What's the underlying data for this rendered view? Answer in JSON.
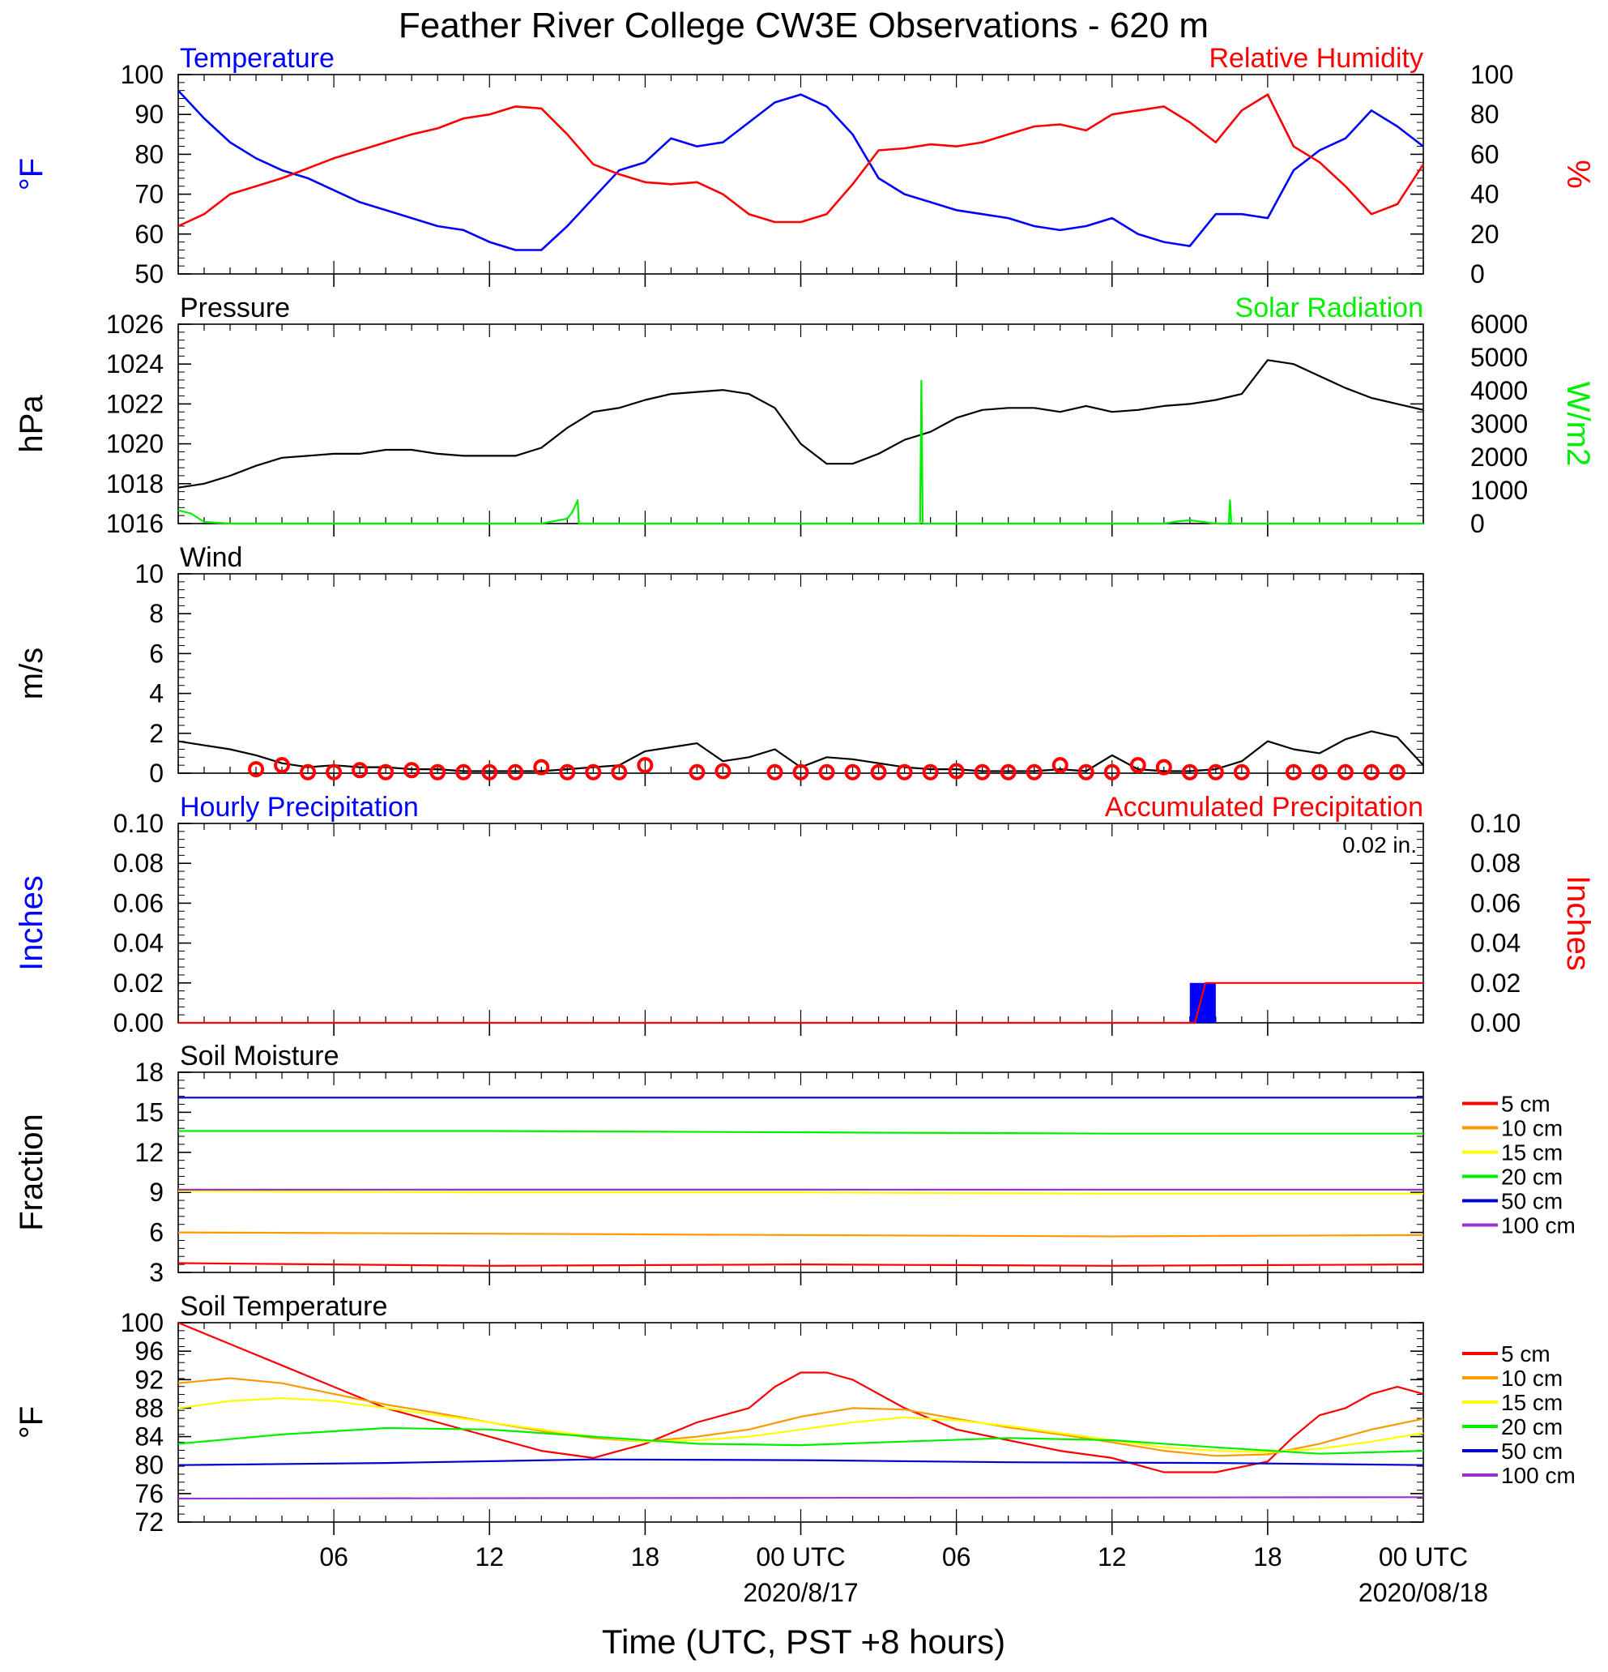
{
  "title": "Feather River College CW3E Observations - 620 m",
  "xlabel": "Time (UTC, PST +8 hours)",
  "x_ticks": [
    {
      "hour": 6,
      "label": "06",
      "sub": ""
    },
    {
      "hour": 12,
      "label": "12",
      "sub": ""
    },
    {
      "hour": 18,
      "label": "18",
      "sub": ""
    },
    {
      "hour": 24,
      "label": "00 UTC",
      "sub": "2020/8/17"
    },
    {
      "hour": 30,
      "label": "06",
      "sub": ""
    },
    {
      "hour": 36,
      "label": "12",
      "sub": ""
    },
    {
      "hour": 42,
      "label": "18",
      "sub": ""
    },
    {
      "hour": 48,
      "label": "00 UTC",
      "sub": "2020/08/18"
    }
  ],
  "colors": {
    "temperature": "#0000ff",
    "humidity": "#ff0000",
    "pressure": "#000000",
    "solar": "#00ee00",
    "wind": "#000000",
    "barbs": "#ff0000",
    "precip_bar": "#0000ff",
    "precip_accum": "#ff0000",
    "depth_5": "#ff0000",
    "depth_10": "#ff9900",
    "depth_15": "#ffff00",
    "depth_20": "#00ee00",
    "depth_50": "#0000cc",
    "depth_100": "#9933cc"
  },
  "chart_data": [
    {
      "type": "line",
      "title_left": "Temperature",
      "title_right": "Relative Humidity",
      "ylabel_left": "°F",
      "ylabel_right": "%",
      "ylim_left": [
        50,
        100
      ],
      "ylim_right": [
        0,
        100
      ],
      "yticks_left": [
        50,
        60,
        70,
        80,
        90,
        100
      ],
      "yticks_right": [
        0,
        20,
        40,
        60,
        80,
        100
      ],
      "series": [
        {
          "name": "Temperature",
          "axis": "left",
          "x": [
            0,
            1,
            2,
            3,
            4,
            5,
            6,
            7,
            8,
            9,
            10,
            11,
            12,
            13,
            14,
            15,
            16,
            17,
            18,
            19,
            20,
            21,
            22,
            23,
            24,
            25,
            26,
            27,
            28,
            29,
            30,
            31,
            32,
            33,
            34,
            35,
            36,
            37,
            38,
            39,
            40,
            41,
            42,
            43,
            44,
            45,
            46,
            47,
            48
          ],
          "y": [
            96,
            89,
            83,
            79,
            76,
            74,
            71,
            68,
            66,
            64,
            62,
            61,
            58,
            56,
            56,
            62,
            69,
            76,
            78,
            84,
            82,
            83,
            88,
            93,
            95,
            92,
            85,
            74,
            70,
            68,
            66,
            65,
            64,
            62,
            61,
            62,
            64,
            60,
            58,
            57,
            65,
            65,
            64,
            76,
            81,
            84,
            91,
            87,
            82
          ]
        },
        {
          "name": "Relative Humidity",
          "axis": "right",
          "x": [
            0,
            1,
            2,
            3,
            4,
            5,
            6,
            7,
            8,
            9,
            10,
            11,
            12,
            13,
            14,
            15,
            16,
            17,
            18,
            19,
            20,
            21,
            22,
            23,
            24,
            25,
            26,
            27,
            28,
            29,
            30,
            31,
            32,
            33,
            34,
            35,
            36,
            37,
            38,
            39,
            40,
            41,
            42,
            43,
            44,
            45,
            46,
            47,
            48
          ],
          "y": [
            24,
            30,
            40,
            44,
            48,
            53,
            58,
            62,
            66,
            70,
            73,
            78,
            80,
            84,
            83,
            70,
            55,
            50,
            46,
            45,
            46,
            40,
            30,
            26,
            26,
            30,
            45,
            62,
            63,
            65,
            64,
            66,
            70,
            74,
            75,
            72,
            80,
            82,
            84,
            76,
            66,
            82,
            90,
            64,
            56,
            44,
            30,
            35,
            55
          ]
        }
      ]
    },
    {
      "type": "line",
      "title_left": "Pressure",
      "title_right": "Solar Radiation",
      "ylabel_left": "hPa",
      "ylabel_right": "W/m2",
      "ylim_left": [
        1016,
        1026
      ],
      "ylim_right": [
        0,
        6000
      ],
      "yticks_left": [
        1016,
        1018,
        1020,
        1022,
        1024,
        1026
      ],
      "yticks_right": [
        0,
        1000,
        2000,
        3000,
        4000,
        5000,
        6000
      ],
      "series": [
        {
          "name": "Pressure",
          "axis": "left",
          "x": [
            0,
            1,
            2,
            3,
            4,
            5,
            6,
            7,
            8,
            9,
            10,
            11,
            12,
            13,
            14,
            15,
            16,
            17,
            18,
            19,
            20,
            21,
            22,
            23,
            24,
            25,
            26,
            27,
            28,
            29,
            30,
            31,
            32,
            33,
            34,
            35,
            36,
            37,
            38,
            39,
            40,
            41,
            42,
            43,
            44,
            45,
            46,
            47,
            48
          ],
          "y": [
            1017.8,
            1018.0,
            1018.4,
            1018.9,
            1019.3,
            1019.4,
            1019.5,
            1019.5,
            1019.7,
            1019.7,
            1019.5,
            1019.4,
            1019.4,
            1019.4,
            1019.8,
            1020.8,
            1021.6,
            1021.8,
            1022.2,
            1022.5,
            1022.6,
            1022.7,
            1022.5,
            1021.8,
            1020.0,
            1019.0,
            1019.0,
            1019.5,
            1020.2,
            1020.6,
            1021.3,
            1021.7,
            1021.8,
            1021.8,
            1021.6,
            1021.9,
            1021.6,
            1021.7,
            1021.9,
            1022.0,
            1022.2,
            1022.5,
            1024.2,
            1024.0,
            1023.4,
            1022.8,
            1022.3,
            1022.0,
            1021.7
          ]
        },
        {
          "name": "Solar Radiation",
          "axis": "right",
          "x": [
            0,
            0.5,
            1,
            2,
            14,
            15,
            15.2,
            15.4,
            15.45,
            16,
            28.6,
            28.65,
            28.7,
            29,
            38,
            38.5,
            39,
            40,
            40.5,
            40.55,
            40.6,
            41,
            48
          ],
          "y": [
            400,
            300,
            50,
            0,
            0,
            150,
            350,
            700,
            0,
            0,
            0,
            4300,
            0,
            0,
            0,
            60,
            100,
            0,
            0,
            700,
            0,
            0,
            0
          ]
        }
      ]
    },
    {
      "type": "line",
      "title_left": "Wind",
      "ylabel_left": "m/s",
      "ylim_left": [
        0,
        10
      ],
      "yticks_left": [
        0,
        2,
        4,
        6,
        8,
        10
      ],
      "series": [
        {
          "name": "Wind Speed",
          "axis": "left",
          "x": [
            0,
            1,
            2,
            3,
            4,
            5,
            6,
            7,
            8,
            9,
            10,
            11,
            12,
            13,
            14,
            15,
            16,
            17,
            18,
            19,
            20,
            21,
            22,
            23,
            24,
            25,
            26,
            27,
            28,
            29,
            30,
            31,
            32,
            33,
            34,
            35,
            36,
            37,
            38,
            39,
            40,
            41,
            42,
            43,
            44,
            45,
            46,
            47,
            48
          ],
          "y": [
            1.6,
            1.4,
            1.2,
            0.9,
            0.5,
            0.3,
            0.4,
            0.3,
            0.3,
            0.2,
            0.2,
            0.1,
            0.1,
            0.1,
            0.1,
            0.2,
            0.3,
            0.4,
            1.1,
            1.3,
            1.5,
            0.6,
            0.8,
            1.2,
            0.3,
            0.8,
            0.7,
            0.5,
            0.3,
            0.2,
            0.2,
            0.1,
            0.1,
            0.1,
            0.2,
            0.1,
            0.9,
            0.2,
            0.1,
            0.1,
            0.2,
            0.6,
            1.6,
            1.2,
            1.0,
            1.7,
            2.1,
            1.8,
            0.4
          ]
        },
        {
          "name": "Wind Barbs",
          "axis": "left",
          "marker": "circle",
          "x": [
            3,
            4,
            5,
            6,
            7,
            8,
            9,
            10,
            11,
            12,
            13,
            14,
            15,
            16,
            17,
            18,
            20,
            21,
            23,
            24,
            25,
            26,
            27,
            28,
            29,
            30,
            31,
            32,
            33,
            34,
            35,
            36,
            37,
            38,
            39,
            40,
            41,
            43,
            44,
            45,
            46,
            47
          ],
          "y": [
            0.2,
            0.4,
            0.05,
            0.05,
            0.15,
            0.05,
            0.15,
            0.05,
            0.05,
            0.05,
            0.05,
            0.3,
            0.05,
            0.05,
            0.05,
            0.4,
            0.05,
            0.1,
            0.05,
            0.05,
            0.05,
            0.05,
            0.05,
            0.05,
            0.05,
            0.1,
            0.05,
            0.05,
            0.05,
            0.4,
            0.05,
            0.05,
            0.4,
            0.3,
            0.05,
            0.05,
            0.05,
            0.05,
            0.05,
            0.05,
            0.05,
            0.05
          ]
        }
      ]
    },
    {
      "type": "bar",
      "title_left": "Hourly Precipitation",
      "title_right": "Accumulated Precipitation",
      "annotation": "0.02 in.",
      "ylabel_left": "Inches",
      "ylabel_right": "Inches",
      "ylim_left": [
        0,
        0.1
      ],
      "ylim_right": [
        0,
        0.1
      ],
      "yticks_left": [
        "0.00",
        "0.02",
        "0.04",
        "0.06",
        "0.08",
        "0.10"
      ],
      "yticks_right": [
        "0.00",
        "0.02",
        "0.04",
        "0.06",
        "0.08",
        "0.10"
      ],
      "series": [
        {
          "name": "Hourly Precipitation",
          "axis": "left",
          "x": [
            39.5
          ],
          "width_hours": 1,
          "y": [
            0.02
          ]
        },
        {
          "name": "Accumulated Precipitation",
          "axis": "right",
          "x": [
            0,
            39.2,
            39.6,
            48
          ],
          "y": [
            0,
            0,
            0.02,
            0.02
          ]
        }
      ]
    },
    {
      "type": "line",
      "title_left": "Soil Moisture",
      "ylabel_left": "Fraction",
      "ylim_left": [
        3,
        18
      ],
      "yticks_left": [
        3,
        6,
        9,
        12,
        15,
        18
      ],
      "legend": [
        "5 cm",
        "10 cm",
        "15 cm",
        "20 cm",
        "50 cm",
        "100 cm"
      ],
      "series": [
        {
          "name": "5 cm",
          "x": [
            0,
            12,
            24,
            36,
            48
          ],
          "y": [
            3.7,
            3.5,
            3.6,
            3.5,
            3.6
          ]
        },
        {
          "name": "10 cm",
          "x": [
            0,
            12,
            24,
            36,
            48
          ],
          "y": [
            6.0,
            5.9,
            5.8,
            5.7,
            5.8
          ]
        },
        {
          "name": "15 cm",
          "x": [
            0,
            12,
            24,
            36,
            48
          ],
          "y": [
            9.1,
            9.0,
            9.0,
            8.9,
            8.9
          ]
        },
        {
          "name": "20 cm",
          "x": [
            0,
            12,
            24,
            36,
            48
          ],
          "y": [
            13.6,
            13.6,
            13.5,
            13.4,
            13.4
          ]
        },
        {
          "name": "50 cm",
          "x": [
            0,
            12,
            24,
            36,
            48
          ],
          "y": [
            16.1,
            16.1,
            16.1,
            16.1,
            16.1
          ]
        },
        {
          "name": "100 cm",
          "x": [
            0,
            12,
            24,
            36,
            48
          ],
          "y": [
            9.2,
            9.2,
            9.2,
            9.2,
            9.2
          ]
        }
      ]
    },
    {
      "type": "line",
      "title_left": "Soil Temperature",
      "ylabel_left": "°F",
      "ylim_left": [
        72,
        100
      ],
      "yticks_left": [
        72,
        76,
        80,
        84,
        88,
        92,
        96,
        100
      ],
      "legend": [
        "5 cm",
        "10 cm",
        "15 cm",
        "20 cm",
        "50 cm",
        "100 cm"
      ],
      "series": [
        {
          "name": "5 cm",
          "x": [
            0,
            2,
            4,
            6,
            8,
            10,
            12,
            14,
            16,
            18,
            20,
            22,
            23,
            24,
            25,
            26,
            28,
            30,
            32,
            34,
            36,
            38,
            40,
            42,
            43,
            44,
            45,
            46,
            47,
            48
          ],
          "y": [
            100,
            97,
            94,
            91,
            88,
            86,
            84,
            82,
            81,
            83,
            86,
            88,
            91,
            93,
            93,
            92,
            88,
            85,
            83.5,
            82,
            81,
            79,
            79,
            80.5,
            84,
            87,
            88,
            90,
            91,
            90
          ]
        },
        {
          "name": "10 cm",
          "x": [
            0,
            2,
            4,
            6,
            8,
            10,
            12,
            14,
            16,
            18,
            20,
            22,
            24,
            26,
            28,
            30,
            32,
            34,
            36,
            38,
            40,
            42,
            44,
            46,
            48
          ],
          "y": [
            91.5,
            92.2,
            91.5,
            90,
            88.5,
            87.3,
            86,
            84.8,
            83.8,
            83.3,
            84,
            85,
            86.8,
            88,
            87.8,
            86.5,
            85.3,
            84.3,
            83.2,
            82,
            81.3,
            81.5,
            83,
            85,
            86.5
          ]
        },
        {
          "name": "15 cm",
          "x": [
            0,
            2,
            4,
            6,
            8,
            10,
            12,
            14,
            16,
            18,
            20,
            22,
            24,
            26,
            28,
            30,
            32,
            34,
            36,
            38,
            40,
            42,
            44,
            46,
            48
          ],
          "y": [
            88,
            89,
            89.4,
            89,
            88,
            87,
            86,
            85,
            84,
            83.3,
            83.5,
            84,
            85,
            86,
            86.7,
            86.3,
            85.5,
            84.5,
            83.5,
            82.5,
            82,
            81.8,
            82.3,
            83.3,
            84.5
          ]
        },
        {
          "name": "20 cm",
          "x": [
            0,
            4,
            8,
            12,
            16,
            20,
            24,
            28,
            32,
            36,
            40,
            44,
            48
          ],
          "y": [
            83,
            84.3,
            85.2,
            85,
            84,
            83,
            82.8,
            83.3,
            83.8,
            83.5,
            82.5,
            81.6,
            82
          ]
        },
        {
          "name": "50 cm",
          "x": [
            0,
            8,
            16,
            24,
            32,
            40,
            48
          ],
          "y": [
            80,
            80.3,
            80.8,
            80.7,
            80.4,
            80.3,
            80
          ]
        },
        {
          "name": "100 cm",
          "x": [
            0,
            24,
            48
          ],
          "y": [
            75.3,
            75.4,
            75.5
          ]
        }
      ]
    }
  ]
}
